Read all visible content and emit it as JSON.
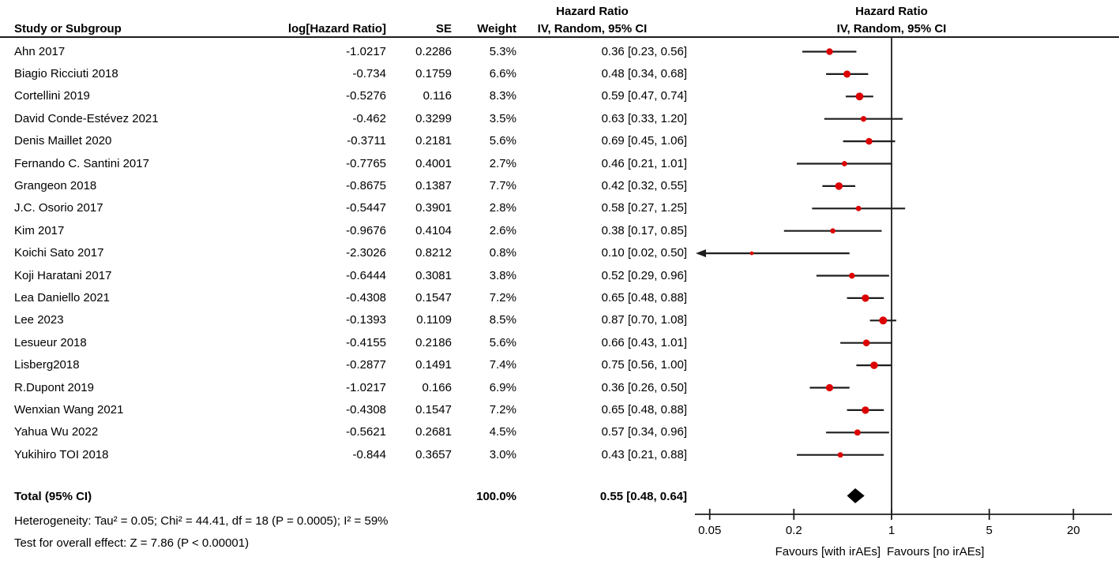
{
  "chart_data": {
    "type": "forest",
    "effect_measure": "Hazard Ratio",
    "model": "IV, Random, 95% CI",
    "columns": {
      "study": "Study or Subgroup",
      "log_hr": "log[Hazard Ratio]",
      "se": "SE",
      "weight": "Weight",
      "hr_title": "Hazard Ratio",
      "hr_subtitle": "IV, Random, 95% CI",
      "plot_title": "Hazard Ratio",
      "plot_subtitle": "IV, Random, 95% CI"
    },
    "studies": [
      {
        "name": "Ahn 2017",
        "log_hr": "-1.0217",
        "se": "0.2286",
        "weight": "5.3%",
        "hr": 0.36,
        "ci_low": 0.23,
        "ci_high": 0.56,
        "ci_text": "0.36 [0.23, 0.56]"
      },
      {
        "name": "Biagio Ricciuti 2018",
        "log_hr": "-0.734",
        "se": "0.1759",
        "weight": "6.6%",
        "hr": 0.48,
        "ci_low": 0.34,
        "ci_high": 0.68,
        "ci_text": "0.48 [0.34, 0.68]"
      },
      {
        "name": "Cortellini 2019",
        "log_hr": "-0.5276",
        "se": "0.116",
        "weight": "8.3%",
        "hr": 0.59,
        "ci_low": 0.47,
        "ci_high": 0.74,
        "ci_text": "0.59 [0.47, 0.74]"
      },
      {
        "name": "David Conde-Estévez 2021",
        "log_hr": "-0.462",
        "se": "0.3299",
        "weight": "3.5%",
        "hr": 0.63,
        "ci_low": 0.33,
        "ci_high": 1.2,
        "ci_text": "0.63 [0.33, 1.20]"
      },
      {
        "name": "Denis Maillet 2020",
        "log_hr": "-0.3711",
        "se": "0.2181",
        "weight": "5.6%",
        "hr": 0.69,
        "ci_low": 0.45,
        "ci_high": 1.06,
        "ci_text": "0.69 [0.45, 1.06]"
      },
      {
        "name": "Fernando C. Santini 2017",
        "log_hr": "-0.7765",
        "se": "0.4001",
        "weight": "2.7%",
        "hr": 0.46,
        "ci_low": 0.21,
        "ci_high": 1.01,
        "ci_text": "0.46 [0.21, 1.01]"
      },
      {
        "name": "Grangeon 2018",
        "log_hr": "-0.8675",
        "se": "0.1387",
        "weight": "7.7%",
        "hr": 0.42,
        "ci_low": 0.32,
        "ci_high": 0.55,
        "ci_text": "0.42 [0.32, 0.55]"
      },
      {
        "name": "J.C. Osorio 2017",
        "log_hr": "-0.5447",
        "se": "0.3901",
        "weight": "2.8%",
        "hr": 0.58,
        "ci_low": 0.27,
        "ci_high": 1.25,
        "ci_text": "0.58 [0.27, 1.25]"
      },
      {
        "name": "Kim 2017",
        "log_hr": "-0.9676",
        "se": "0.4104",
        "weight": "2.6%",
        "hr": 0.38,
        "ci_low": 0.17,
        "ci_high": 0.85,
        "ci_text": "0.38 [0.17, 0.85]"
      },
      {
        "name": "Koichi Sato 2017",
        "log_hr": "-2.3026",
        "se": "0.8212",
        "weight": "0.8%",
        "hr": 0.1,
        "ci_low": 0.02,
        "ci_high": 0.5,
        "ci_text": "0.10 [0.02, 0.50]"
      },
      {
        "name": "Koji Haratani 2017",
        "log_hr": "-0.6444",
        "se": "0.3081",
        "weight": "3.8%",
        "hr": 0.52,
        "ci_low": 0.29,
        "ci_high": 0.96,
        "ci_text": "0.52 [0.29, 0.96]"
      },
      {
        "name": "Lea Daniello 2021",
        "log_hr": "-0.4308",
        "se": "0.1547",
        "weight": "7.2%",
        "hr": 0.65,
        "ci_low": 0.48,
        "ci_high": 0.88,
        "ci_text": "0.65 [0.48, 0.88]"
      },
      {
        "name": "Lee 2023",
        "log_hr": "-0.1393",
        "se": "0.1109",
        "weight": "8.5%",
        "hr": 0.87,
        "ci_low": 0.7,
        "ci_high": 1.08,
        "ci_text": "0.87 [0.70, 1.08]"
      },
      {
        "name": "Lesueur 2018",
        "log_hr": "-0.4155",
        "se": "0.2186",
        "weight": "5.6%",
        "hr": 0.66,
        "ci_low": 0.43,
        "ci_high": 1.01,
        "ci_text": "0.66 [0.43, 1.01]"
      },
      {
        "name": "Lisberg2018",
        "log_hr": "-0.2877",
        "se": "0.1491",
        "weight": "7.4%",
        "hr": 0.75,
        "ci_low": 0.56,
        "ci_high": 1.0,
        "ci_text": "0.75 [0.56, 1.00]"
      },
      {
        "name": "R.Dupont 2019",
        "log_hr": "-1.0217",
        "se": "0.166",
        "weight": "6.9%",
        "hr": 0.36,
        "ci_low": 0.26,
        "ci_high": 0.5,
        "ci_text": "0.36 [0.26, 0.50]"
      },
      {
        "name": "Wenxian Wang 2021",
        "log_hr": "-0.4308",
        "se": "0.1547",
        "weight": "7.2%",
        "hr": 0.65,
        "ci_low": 0.48,
        "ci_high": 0.88,
        "ci_text": "0.65 [0.48, 0.88]"
      },
      {
        "name": "Yahua Wu 2022",
        "log_hr": "-0.5621",
        "se": "0.2681",
        "weight": "4.5%",
        "hr": 0.57,
        "ci_low": 0.34,
        "ci_high": 0.96,
        "ci_text": "0.57 [0.34, 0.96]"
      },
      {
        "name": "Yukihiro TOI 2018",
        "log_hr": "-0.844",
        "se": "0.3657",
        "weight": "3.0%",
        "hr": 0.43,
        "ci_low": 0.21,
        "ci_high": 0.88,
        "ci_text": "0.43 [0.21, 0.88]"
      }
    ],
    "total": {
      "label": "Total (95% CI)",
      "weight": "100.0%",
      "hr": 0.55,
      "ci_low": 0.48,
      "ci_high": 0.64,
      "ci_text": "0.55 [0.48, 0.64]"
    },
    "footer": {
      "heterogeneity": "Heterogeneity: Tau² = 0.05; Chi² = 44.41, df = 18 (P = 0.0005); I² = 59%",
      "overall_effect": "Test for overall effect: Z = 7.86 (P < 0.00001)"
    },
    "axis": {
      "scale": "log",
      "min": 0.05,
      "max": 20,
      "ticks": [
        0.05,
        0.2,
        1,
        5,
        20
      ],
      "tick_labels": [
        "0.05",
        "0.2",
        "1",
        "5",
        "20"
      ],
      "left_label": "Favours [with irAEs]",
      "right_label": "Favours [no irAEs]"
    },
    "colors": {
      "marker": "#dd0000",
      "line": "#1d1d1d",
      "text": "#000000"
    }
  }
}
